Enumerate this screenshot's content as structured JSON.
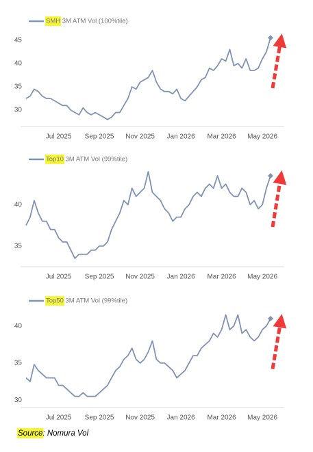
{
  "chart_data": [
    {
      "type": "line",
      "xlim": [
        0,
        60
      ],
      "xticks": [
        {
          "value": 8,
          "label": "Jul 2025"
        },
        {
          "value": 18,
          "label": "Sep 2025"
        },
        {
          "value": 28,
          "label": "Nov 2025"
        },
        {
          "value": 38,
          "label": "Jan 2026"
        },
        {
          "value": 48,
          "label": "Mar 2026"
        },
        {
          "value": 58,
          "label": "May 2026"
        }
      ],
      "ylim": [
        26.5,
        47
      ],
      "yticks": [
        30,
        35,
        40,
        45
      ],
      "grid": false,
      "series": [
        {
          "name": "SMH 3M ATM Vol (100%tile)",
          "color": "#7f93b3",
          "values": [
            32.5,
            33,
            34.5,
            34,
            33,
            32.5,
            32.5,
            32,
            31.5,
            31,
            31,
            30,
            29.5,
            29,
            30.5,
            29.5,
            29,
            29.5,
            29,
            28.5,
            28,
            28.5,
            29.5,
            29.5,
            31,
            32.5,
            35,
            34.5,
            36,
            36.5,
            37,
            38.5,
            36,
            34.5,
            34,
            34,
            33.5,
            34.5,
            32.5,
            32,
            33,
            34,
            35,
            36.5,
            37,
            39,
            38.5,
            39.5,
            41,
            40.5,
            43,
            39.5,
            40,
            39,
            41,
            38.5,
            38.5,
            39,
            41,
            42.5,
            45.5
          ]
        }
      ]
    },
    {
      "type": "line",
      "xlim": [
        0,
        60
      ],
      "xticks": [
        {
          "value": 8,
          "label": "Jul 2025"
        },
        {
          "value": 18,
          "label": "Sep 2025"
        },
        {
          "value": 28,
          "label": "Nov 2025"
        },
        {
          "value": 38,
          "label": "Jan 2026"
        },
        {
          "value": 48,
          "label": "Mar 2026"
        },
        {
          "value": 58,
          "label": "May 2026"
        }
      ],
      "ylim": [
        32.5,
        44.5
      ],
      "yticks": [
        35,
        40
      ],
      "grid": false,
      "series": [
        {
          "name": "Top10 3M ATM Vol (99%tile)",
          "color": "#7f93b3",
          "values": [
            37.5,
            38.5,
            40.5,
            39,
            38,
            38,
            37,
            37,
            36,
            35.5,
            35.5,
            34.5,
            33.5,
            34,
            34,
            34,
            34.5,
            34.5,
            35,
            35,
            35.5,
            37,
            38,
            39,
            40.5,
            40,
            42,
            41,
            41.5,
            42,
            44,
            41.5,
            41,
            40.5,
            39.5,
            39,
            38,
            38.5,
            38.5,
            39.5,
            40,
            41,
            41.5,
            41,
            42,
            42.5,
            42,
            43.5,
            42,
            42.5,
            41.5,
            41,
            41,
            42,
            41.5,
            40,
            40.5,
            39.5,
            40,
            42,
            43.5
          ]
        }
      ]
    },
    {
      "type": "line",
      "xlim": [
        0,
        60
      ],
      "xticks": [
        {
          "value": 8,
          "label": "Jul 2025"
        },
        {
          "value": 18,
          "label": "Sep 2025"
        },
        {
          "value": 28,
          "label": "Nov 2025"
        },
        {
          "value": 38,
          "label": "Jan 2026"
        },
        {
          "value": 48,
          "label": "Mar 2026"
        },
        {
          "value": 58,
          "label": "May 2026"
        }
      ],
      "ylim": [
        29,
        42
      ],
      "yticks": [
        30,
        35,
        40
      ],
      "grid": false,
      "series": [
        {
          "name": "Top50 3M ATM Vol (99%tile)",
          "color": "#7f93b3",
          "values": [
            33,
            32.5,
            34.8,
            34,
            33.5,
            33,
            33,
            33,
            32,
            32,
            31.5,
            31,
            30.5,
            30.5,
            31,
            30.5,
            30.5,
            30.5,
            31,
            31.5,
            32,
            33,
            34,
            34.5,
            35.5,
            36,
            37,
            35.5,
            35,
            35.5,
            36.5,
            38,
            35.5,
            35,
            35,
            34.5,
            34,
            33,
            33.5,
            34,
            35,
            36,
            36,
            37,
            37.5,
            38,
            39,
            38.5,
            39.5,
            41.5,
            39.5,
            40,
            41.5,
            39,
            39.5,
            38.5,
            38,
            38.5,
            39.5,
            40,
            41
          ]
        }
      ]
    }
  ],
  "source": "Source: Nomura Vol"
}
